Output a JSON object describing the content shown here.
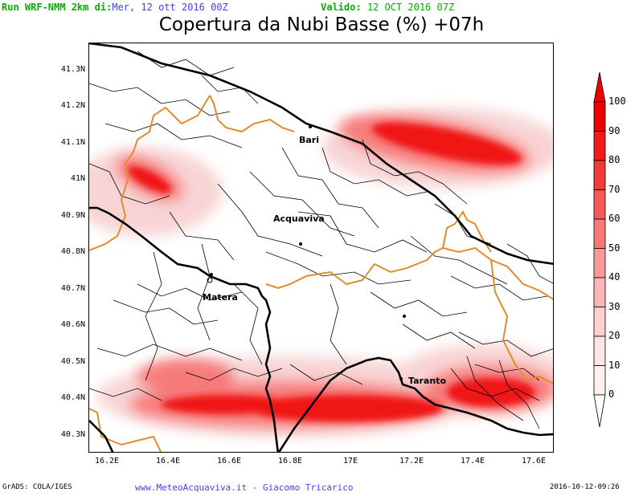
{
  "header": {
    "run_label": "Run WRF-NMM 2km di:",
    "run_date": "Mer, 12 ott 2016 00Z",
    "valid_label": "Valido:",
    "valid_date": "12 OCT 2016 07Z",
    "title": "Copertura da Nubi Basse (%) +07h",
    "colors": {
      "run": "#00b000",
      "date": "#4040ff",
      "valid": "#00b000"
    }
  },
  "axes": {
    "lat_ticks": [
      "41.3N",
      "41.2N",
      "41.1N",
      "41N",
      "40.9N",
      "40.8N",
      "40.7N",
      "40.6N",
      "40.5N",
      "40.4N",
      "40.3N"
    ],
    "lon_ticks": [
      "16.2E",
      "16.4E",
      "16.6E",
      "16.8E",
      "17E",
      "17.2E",
      "17.4E",
      "17.6E"
    ]
  },
  "places": {
    "bari": "Bari",
    "acquaviva": "Acquaviva",
    "matera": "Matera",
    "taranto": "Taranto"
  },
  "colorbar": {
    "labels": [
      "100",
      "90",
      "80",
      "70",
      "60",
      "50",
      "40",
      "30",
      "20",
      "10",
      "0"
    ],
    "colors": [
      "#f00000",
      "#f41a1a",
      "#f53a3a",
      "#f75858",
      "#f97878",
      "#fb9898",
      "#fcb6b6",
      "#fdd0d0",
      "#fee4e4",
      "#fff0f0"
    ]
  },
  "footer": {
    "left": "GrADS: COLA/IGES",
    "center": "www.MeteoAcquaviva.it  -  Giacomo Tricarico",
    "right": "2016-10-12-09:26"
  }
}
